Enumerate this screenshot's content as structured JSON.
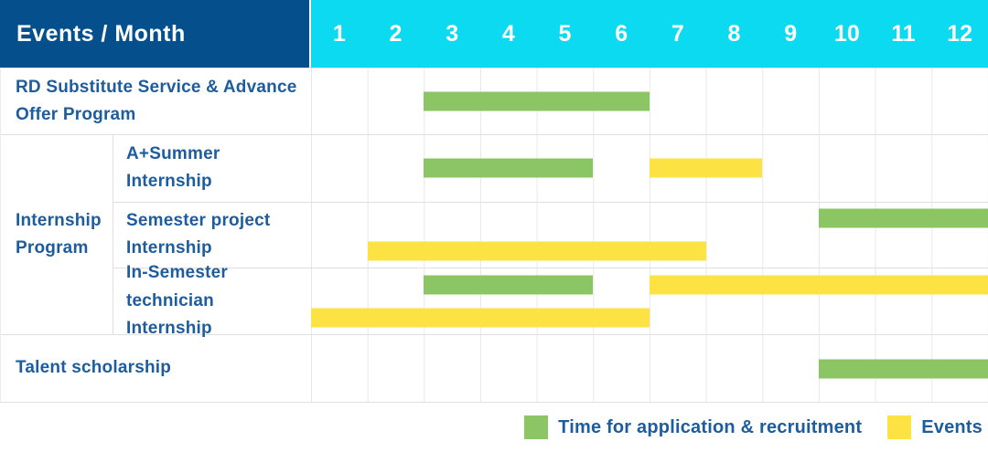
{
  "header": {
    "title": "Events / Month",
    "months": [
      "1",
      "2",
      "3",
      "4",
      "5",
      "6",
      "7",
      "8",
      "9",
      "10",
      "11",
      "12"
    ]
  },
  "group": {
    "label": "Internship Program"
  },
  "colors": {
    "header_bg": "#05508c",
    "months_bg": "#0bdaf0",
    "label_text": "#1d5c9f",
    "grid_line": "#e8e8e8",
    "recruitment_green": "#8cc563",
    "events_yellow": "#fde243"
  },
  "chart_data": {
    "type": "gantt",
    "title": "Events / Month",
    "x_unit": "month",
    "x_ticks": [
      1,
      2,
      3,
      4,
      5,
      6,
      7,
      8,
      9,
      10,
      11,
      12
    ],
    "x_range": [
      1,
      12
    ],
    "grid": true,
    "legend_position": "bottom-right",
    "series": {
      "recruitment": {
        "label": "Time for application & recruitment",
        "color": "#8cc563"
      },
      "events": {
        "label": "Events",
        "color": "#fde243"
      }
    },
    "rows": [
      {
        "label": "RD Substitute Service & Advance Offer Program",
        "group": "",
        "lines": [
          [
            {
              "series": "recruitment",
              "start_month": 3,
              "end_month": 6
            }
          ]
        ]
      },
      {
        "label": "A+Summer Internship",
        "group": "Internship Program",
        "lines": [
          [
            {
              "series": "recruitment",
              "start_month": 3,
              "end_month": 5
            },
            {
              "series": "events",
              "start_month": 7,
              "end_month": 8
            }
          ]
        ]
      },
      {
        "label": "Semester project Internship",
        "group": "Internship Program",
        "lines": [
          [
            {
              "series": "recruitment",
              "start_month": 10,
              "end_month": 12
            }
          ],
          [
            {
              "series": "events",
              "start_month": 2,
              "end_month": 7
            }
          ]
        ]
      },
      {
        "label": "In-Semester technician Internship",
        "group": "Internship Program",
        "lines": [
          [
            {
              "series": "recruitment",
              "start_month": 3,
              "end_month": 5
            },
            {
              "series": "events",
              "start_month": 7,
              "end_month": 12
            }
          ],
          [
            {
              "series": "events",
              "start_month": 1,
              "end_month": 6
            }
          ]
        ]
      },
      {
        "label": "Talent scholarship",
        "group": "",
        "lines": [
          [
            {
              "series": "recruitment",
              "start_month": 10,
              "end_month": 12
            }
          ]
        ]
      }
    ]
  }
}
